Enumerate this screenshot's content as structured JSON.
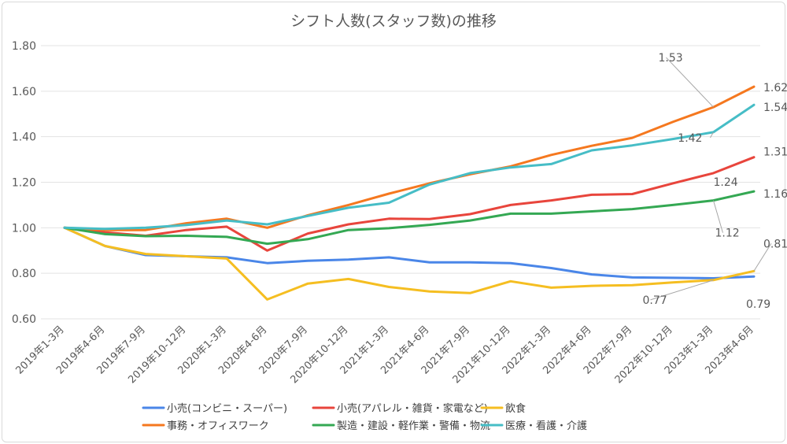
{
  "chart_data": {
    "type": "line",
    "title": "シフト人数(スタッフ数)の推移",
    "xlabel": "",
    "ylabel": "",
    "ylim": [
      0.6,
      1.8
    ],
    "yticks": [
      "0.60",
      "0.80",
      "1.00",
      "1.20",
      "1.40",
      "1.60",
      "1.80"
    ],
    "grid": true,
    "legend_position": "bottom",
    "categories": [
      "2019年1-3月",
      "2019年4-6月",
      "2019年7-9月",
      "2019年10-12月",
      "2020年1-3月",
      "2020年4-6月",
      "2020年7-9月",
      "2020年10-12月",
      "2021年1-3月",
      "2021年4-6月",
      "2021年7-9月",
      "2021年10-12月",
      "2022年1-3月",
      "2022年4-6月",
      "2022年7-9月",
      "2022年10-12月",
      "2023年1-3月",
      "2023年4-6月"
    ],
    "series": [
      {
        "name": "小売(コンビニ・スーパー)",
        "color": "#4a86e8",
        "values": [
          1.0,
          0.92,
          0.88,
          0.875,
          0.87,
          0.845,
          0.855,
          0.86,
          0.87,
          0.848,
          0.848,
          0.845,
          0.823,
          0.795,
          0.782,
          0.78,
          0.778,
          0.786
        ]
      },
      {
        "name": "小売(アパレル・雑貨・家電など)",
        "color": "#e8453c",
        "values": [
          1.0,
          0.98,
          0.965,
          0.99,
          1.005,
          0.9,
          0.975,
          1.015,
          1.04,
          1.038,
          1.06,
          1.1,
          1.12,
          1.145,
          1.148,
          1.195,
          1.24,
          1.31
        ]
      },
      {
        "name": "飲食",
        "color": "#f5be21",
        "values": [
          1.0,
          0.92,
          0.885,
          0.875,
          0.865,
          0.685,
          0.755,
          0.775,
          0.74,
          0.72,
          0.713,
          0.765,
          0.737,
          0.745,
          0.748,
          0.76,
          0.77,
          0.81
        ]
      },
      {
        "name": "事務・オフィスワーク",
        "color": "#f5781f",
        "values": [
          1.0,
          0.99,
          0.99,
          1.02,
          1.04,
          1.0,
          1.055,
          1.1,
          1.15,
          1.195,
          1.235,
          1.27,
          1.32,
          1.36,
          1.395,
          1.465,
          1.53,
          1.62
        ]
      },
      {
        "name": "製造・建設・軽作業・警備・物流",
        "color": "#34a853",
        "values": [
          1.0,
          0.972,
          0.963,
          0.965,
          0.96,
          0.93,
          0.95,
          0.99,
          0.998,
          1.013,
          1.032,
          1.062,
          1.062,
          1.072,
          1.082,
          1.1,
          1.12,
          1.16
        ]
      },
      {
        "name": "医療・看護・介護",
        "color": "#46bdc6",
        "values": [
          1.0,
          0.995,
          1.0,
          1.012,
          1.032,
          1.015,
          1.052,
          1.088,
          1.11,
          1.19,
          1.24,
          1.265,
          1.28,
          1.34,
          1.362,
          1.39,
          1.42,
          1.54
        ]
      }
    ],
    "data_labels": [
      {
        "text": "1.53",
        "series": 3,
        "index": 16
      },
      {
        "text": "1.62",
        "series": 3,
        "index": 17
      },
      {
        "text": "1.54",
        "series": 5,
        "index": 17
      },
      {
        "text": "1.42",
        "series": 5,
        "index": 16
      },
      {
        "text": "1.31",
        "series": 1,
        "index": 17
      },
      {
        "text": "1.24",
        "series": 1,
        "index": 16
      },
      {
        "text": "1.16",
        "series": 4,
        "index": 17
      },
      {
        "text": "1.12",
        "series": 4,
        "index": 16
      },
      {
        "text": "0.81",
        "series": 2,
        "index": 17
      },
      {
        "text": "0.77",
        "series": 2,
        "index": 16
      },
      {
        "text": "0.79",
        "series": 0,
        "index": 17
      }
    ],
    "legend": [
      "小売(コンビニ・スーパー)",
      "小売(アパレル・雑貨・家電など)",
      "飲食",
      "事務・オフィスワーク",
      "製造・建設・軽作業・警備・物流",
      "医療・看護・介護"
    ]
  }
}
